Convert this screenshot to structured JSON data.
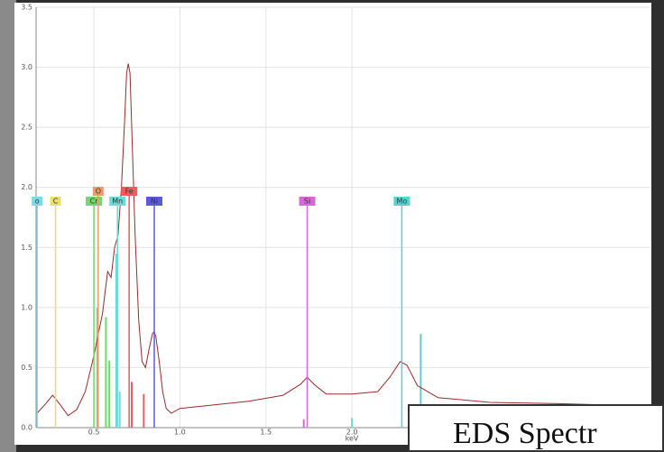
{
  "chart_data": {
    "type": "line",
    "x_label": "keV",
    "xlim": [
      0.164,
      3.73
    ],
    "xticks": [
      0.5,
      {
        "value": 1,
        "label": "1.0"
      },
      1.5,
      {
        "value": 2,
        "label": "2.0"
      }
    ],
    "ylim": [
      0,
      3.5
    ],
    "yticks": [
      {
        "value": 0,
        "label": "0.0"
      },
      0.5,
      {
        "value": 1,
        "label": "1.0"
      },
      1.5,
      {
        "value": 2,
        "label": "2.0"
      },
      2.5,
      {
        "value": 3,
        "label": "3.0"
      },
      3.5
    ],
    "grid": true,
    "x": [
      0.17,
      0.22,
      0.26,
      0.3,
      0.35,
      0.4,
      0.45,
      0.5,
      0.55,
      0.58,
      0.6,
      0.62,
      0.64,
      0.66,
      0.68,
      0.69,
      0.7,
      0.71,
      0.72,
      0.74,
      0.76,
      0.78,
      0.8,
      0.82,
      0.84,
      0.85,
      0.86,
      0.88,
      0.9,
      0.92,
      0.95,
      1.0,
      1.2,
      1.4,
      1.6,
      1.7,
      1.74,
      1.78,
      1.85,
      2.0,
      2.15,
      2.22,
      2.28,
      2.32,
      2.38,
      2.5,
      2.8,
      3.2,
      3.73
    ],
    "series": [
      {
        "color": "#9b2b2b",
        "values": [
          0.12,
          0.2,
          0.27,
          0.2,
          0.1,
          0.15,
          0.3,
          0.6,
          0.95,
          1.3,
          1.25,
          1.5,
          1.6,
          2.0,
          2.6,
          2.95,
          3.03,
          2.95,
          2.5,
          1.6,
          0.9,
          0.55,
          0.5,
          0.65,
          0.78,
          0.8,
          0.76,
          0.55,
          0.3,
          0.16,
          0.12,
          0.16,
          0.19,
          0.22,
          0.27,
          0.36,
          0.42,
          0.36,
          0.28,
          0.28,
          0.3,
          0.42,
          0.55,
          0.52,
          0.35,
          0.25,
          0.21,
          0.2,
          0.18
        ]
      }
    ],
    "elements": [
      {
        "name": "o",
        "energy": 0.17,
        "color": "#7fd8e8"
      },
      {
        "name": "C",
        "energy": 0.277,
        "color": "#e8e070"
      },
      {
        "name": "Cr",
        "energy": 0.5,
        "color": "#6fd86f"
      },
      {
        "name": "O",
        "energy": 0.525,
        "color": "#f09a6a"
      },
      {
        "name": "Mn",
        "energy": 0.637,
        "color": "#6fd8d8"
      },
      {
        "name": "Fe",
        "energy": 0.705,
        "color": "#f05a5a"
      },
      {
        "name": "Ni",
        "energy": 0.851,
        "color": "#5a5ae0"
      },
      {
        "name": "Si",
        "energy": 1.74,
        "color": "#d868d8"
      },
      {
        "name": "Mo",
        "energy": 2.29,
        "color": "#5ad0d0"
      }
    ],
    "peak_lines": [
      {
        "energy": 0.52,
        "height": 1.0,
        "color": "#6fd86f"
      },
      {
        "energy": 0.57,
        "height": 0.92,
        "color": "#6fd86f"
      },
      {
        "energy": 0.59,
        "height": 0.56,
        "color": "#6fd86f"
      },
      {
        "energy": 0.63,
        "height": 1.45,
        "color": "#6fd8d8"
      },
      {
        "energy": 0.65,
        "height": 0.3,
        "color": "#6fd8d8"
      },
      {
        "energy": 0.72,
        "height": 0.38,
        "color": "#f05a5a"
      },
      {
        "energy": 0.79,
        "height": 0.28,
        "color": "#f05a5a"
      },
      {
        "energy": 1.72,
        "height": 0.07,
        "color": "#d868d8"
      },
      {
        "energy": 2.0,
        "height": 0.08,
        "color": "#6fd8d8"
      },
      {
        "energy": 2.4,
        "height": 0.78,
        "color": "#5ad0d0"
      }
    ],
    "annotation": "EDS Spectr"
  }
}
